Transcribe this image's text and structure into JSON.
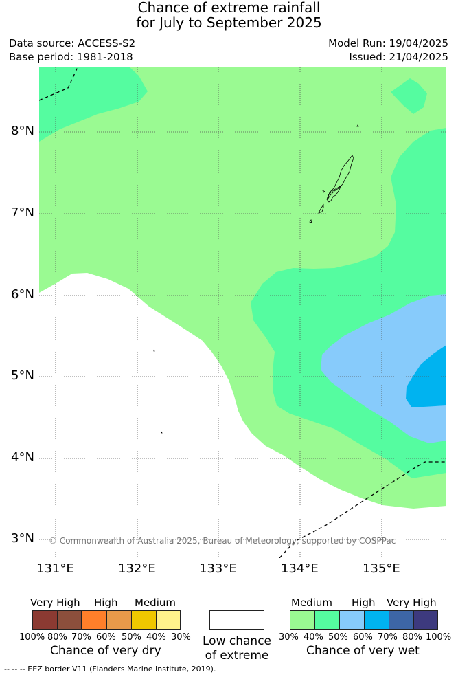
{
  "title": {
    "line1": "Chance of extreme rainfall",
    "line2": "for July to September 2025"
  },
  "meta": {
    "data_source": "Data source: ACCESS-S2",
    "base_period": "Base period: 1981-2018",
    "model_run": "Model Run: 19/04/2025",
    "issued": "Issued: 21/04/2025"
  },
  "map": {
    "lat_labels": [
      "8°N",
      "7°N",
      "6°N",
      "5°N",
      "4°N",
      "3°N"
    ],
    "lon_labels": [
      "131°E",
      "132°E",
      "133°E",
      "134°E",
      "135°E"
    ],
    "copyright": "© Commonwealth of Australia 2025, Bureau of Meteorology, supported by COSPPac"
  },
  "legend": {
    "dry": {
      "categories": [
        "Very High",
        "High",
        "Medium"
      ],
      "ticks": [
        "100%",
        "80%",
        "70%",
        "60%",
        "50%",
        "40%",
        "30%"
      ],
      "title": "Chance of very dry",
      "colors": [
        "#8b3a32",
        "#8c4f3c",
        "#ff7f2a",
        "#e89a4a",
        "#f0c800",
        "#fff28c"
      ]
    },
    "low": {
      "line1": "Low chance",
      "line2": "of extreme"
    },
    "wet": {
      "categories": [
        "Medium",
        "High",
        "Very High"
      ],
      "ticks": [
        "30%",
        "40%",
        "50%",
        "60%",
        "70%",
        "80%",
        "100%"
      ],
      "title": "Chance of very wet",
      "colors": [
        "#9afa92",
        "#55fca0",
        "#87cbfb",
        "#00b3f0",
        "#3d66a6",
        "#3d3a7e"
      ]
    }
  },
  "footer": {
    "eez_note": "-- -- -- EEZ border V11 (Flanders Marine Institute, 2019)."
  }
}
